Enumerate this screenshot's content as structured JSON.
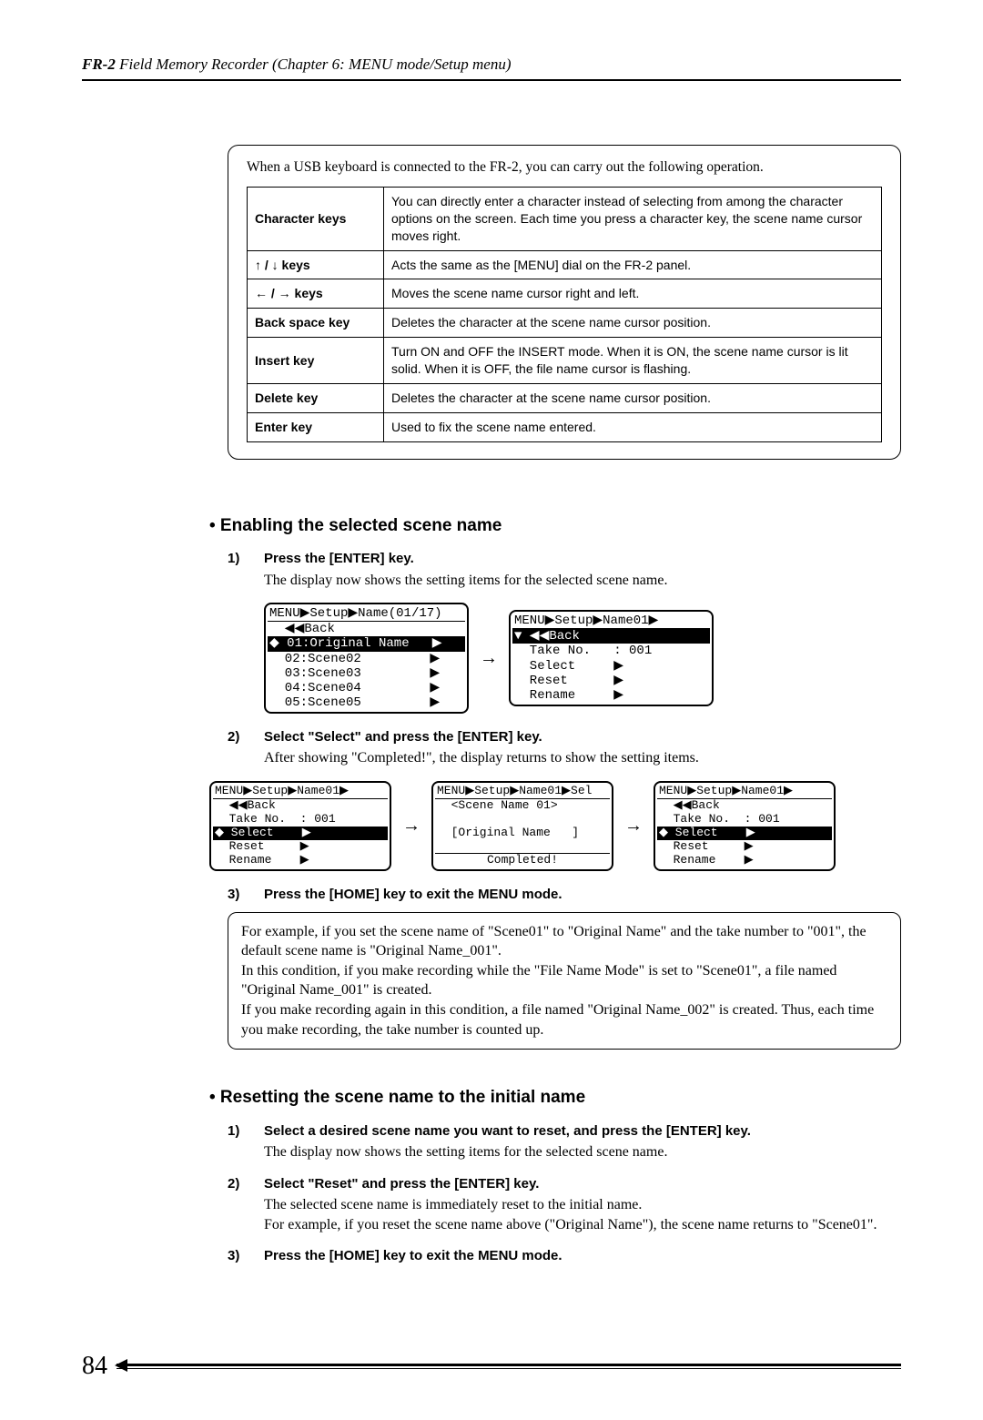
{
  "header": {
    "product": "FR-2",
    "chapter": " Field Memory Recorder (Chapter 6: MENU mode/Setup menu)"
  },
  "usb_box": {
    "intro": "When a USB keyboard is connected to the FR-2, you can carry out the following operation.",
    "rows": [
      {
        "key": "Character keys",
        "desc": "You can directly enter a character instead of selecting from among the character options on the screen. Each time you press a character key, the scene name cursor moves right."
      },
      {
        "key": "↑ / ↓ keys",
        "desc": "Acts the same as the [MENU] dial on the FR-2 panel."
      },
      {
        "key": "← / → keys",
        "desc": "Moves the scene name cursor right and left."
      },
      {
        "key": "Back space key",
        "desc": "Deletes the character at the scene name cursor position."
      },
      {
        "key": "Insert key",
        "desc": "Turn ON and OFF the INSERT mode. When it is ON, the scene name cursor is lit solid. When it is OFF, the file name cursor is flashing."
      },
      {
        "key": "Delete key",
        "desc": "Deletes the character at the scene name cursor position."
      },
      {
        "key": "Enter key",
        "desc": "Used to fix the scene name entered."
      }
    ]
  },
  "section1": {
    "title": "• Enabling the selected scene name",
    "steps": [
      {
        "n": "1)",
        "head": "Press the [ENTER] key.",
        "desc": "The display now shows the setting items for the selected scene name."
      },
      {
        "n": "2)",
        "head": "Select \"Select\" and press the [ENTER] key.",
        "desc": "After showing \"Completed!\", the display returns to show the setting items."
      },
      {
        "n": "3)",
        "head": "Press the [HOME] key to exit the MENU mode.",
        "desc": ""
      }
    ],
    "lcd_a": {
      "top": "MENU▶Setup▶Name(01/17)",
      "rows": [
        {
          "t": "  ◀◀Back",
          "hi": false
        },
        {
          "t": "◆ 01:Original Name   ▶",
          "hi": true
        },
        {
          "t": "  02:Scene02         ▶",
          "hi": false
        },
        {
          "t": "  03:Scene03         ▶",
          "hi": false
        },
        {
          "t": "  04:Scene04         ▶",
          "hi": false
        },
        {
          "t": "  05:Scene05         ▶",
          "hi": false
        }
      ]
    },
    "lcd_b": {
      "top": "MENU▶Setup▶Name01▶",
      "rows": [
        {
          "t": "▼ ◀◀Back",
          "hi": true
        },
        {
          "t": "  Take No.   : 001",
          "hi": false
        },
        {
          "t": "  Select     ▶",
          "hi": false
        },
        {
          "t": "  Reset      ▶",
          "hi": false
        },
        {
          "t": "  Rename     ▶",
          "hi": false
        }
      ]
    },
    "lcd_c": {
      "top": "MENU▶Setup▶Name01▶",
      "rows": [
        {
          "t": "  ◀◀Back",
          "hi": false
        },
        {
          "t": "  Take No.  : 001",
          "hi": false
        },
        {
          "t": "◆ Select    ▶",
          "hi": true
        },
        {
          "t": "  Reset     ▶",
          "hi": false
        },
        {
          "t": "  Rename    ▶",
          "hi": false
        }
      ]
    },
    "lcd_d": {
      "top": "MENU▶Setup▶Name01▶Sel",
      "mid1": "  <Scene Name 01>",
      "mid2": "  [Original Name   ]",
      "bot": "Completed!"
    },
    "lcd_e": {
      "top": "MENU▶Setup▶Name01▶",
      "rows": [
        {
          "t": "  ◀◀Back",
          "hi": false
        },
        {
          "t": "  Take No.  : 001",
          "hi": false
        },
        {
          "t": "◆ Select    ▶",
          "hi": true
        },
        {
          "t": "  Reset     ▶",
          "hi": false
        },
        {
          "t": "  Rename    ▶",
          "hi": false
        }
      ]
    },
    "info": "For example, if you set the scene name of \"Scene01\" to \"Original Name\" and the take number to \"001\", the default scene name is \"Original Name_001\".\nIn this condition, if you make recording while the \"File Name Mode\" is set to \"Scene01\", a file named \"Original Name_001\" is created.\nIf you make recording again in this condition, a file named \"Original Name_002\" is created. Thus, each time you make recording, the take number is counted up."
  },
  "section2": {
    "title": "• Resetting the scene name to the initial name",
    "steps": [
      {
        "n": "1)",
        "head": "Select a desired scene name you want to reset, and press the [ENTER] key.",
        "desc": "The display now shows the setting items for the selected scene name."
      },
      {
        "n": "2)",
        "head": "Select \"Reset\" and press the [ENTER] key.",
        "desc": "The selected scene name is immediately reset to the initial name.\nFor example, if you reset the scene name above (\"Original Name\"), the scene name returns to \"Scene01\"."
      },
      {
        "n": "3)",
        "head": "Press the [HOME] key to exit the MENU mode.",
        "desc": ""
      }
    ]
  },
  "page_number": "84"
}
